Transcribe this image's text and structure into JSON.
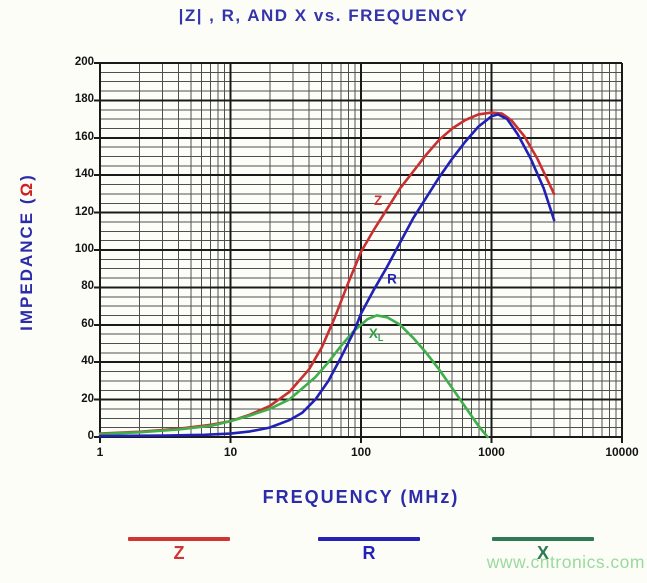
{
  "title": "|Z| , R, AND X vs. FREQUENCY",
  "watermark": "www.cntronics.com",
  "axes": {
    "y_label_prefix": "IMPEDANCE (",
    "y_label_omega": "Ω",
    "y_label_suffix": ")",
    "x_label": "FREQUENCY (MHz)",
    "y_ticks": [
      0,
      20,
      40,
      60,
      80,
      100,
      120,
      140,
      160,
      180,
      200
    ],
    "x_ticks": [
      "1",
      "10",
      "100",
      "1000",
      "10000"
    ]
  },
  "colors": {
    "title_blue": "#3434ab",
    "axis_blue": "#2c2cab",
    "omega_red": "#cf2020",
    "grid_minor": "#4f4f4f",
    "grid_major": "#1a1a1a",
    "tick_text": "#141414",
    "watermark_green": "#9ada9c"
  },
  "chart_data": {
    "type": "line",
    "title": "|Z| , R, AND X vs. FREQUENCY",
    "xlabel": "FREQUENCY (MHz)",
    "ylabel": "IMPEDANCE (Ω)",
    "x_axis": {
      "scale": "log",
      "range_mhz": [
        1,
        10000
      ],
      "minor_marks": "2-9 each decade"
    },
    "y_axis": {
      "range": [
        0,
        200
      ],
      "minor_step": 5,
      "major_step": 20
    },
    "grid": "on",
    "series": [
      {
        "name": "Z",
        "color": "#c93030",
        "points": [
          [
            0,
            1.8
          ],
          [
            0.3,
            2.8
          ],
          [
            0.6,
            4.4
          ],
          [
            0.85,
            6.5
          ],
          [
            1.0,
            8.5
          ],
          [
            1.15,
            12
          ],
          [
            1.3,
            16.5
          ],
          [
            1.45,
            24
          ],
          [
            1.6,
            36
          ],
          [
            1.7,
            48
          ],
          [
            1.8,
            64
          ],
          [
            1.9,
            82
          ],
          [
            2.0,
            99
          ],
          [
            2.1,
            111
          ],
          [
            2.2,
            122
          ],
          [
            2.3,
            133
          ],
          [
            2.4,
            142
          ],
          [
            2.5,
            151
          ],
          [
            2.6,
            159
          ],
          [
            2.7,
            165
          ],
          [
            2.8,
            169.5
          ],
          [
            2.9,
            172.5
          ],
          [
            3.0,
            173.5
          ],
          [
            3.08,
            173
          ],
          [
            3.15,
            169.5
          ],
          [
            3.25,
            161
          ],
          [
            3.35,
            149
          ],
          [
            3.48,
            130
          ]
        ]
      },
      {
        "name": "X",
        "color": "#3fae4b",
        "points": [
          [
            0,
            1.6
          ],
          [
            0.3,
            2.5
          ],
          [
            0.6,
            4.0
          ],
          [
            0.85,
            6.0
          ],
          [
            1.0,
            8.5
          ],
          [
            1.15,
            11.5
          ],
          [
            1.3,
            15
          ],
          [
            1.45,
            20
          ],
          [
            1.55,
            26
          ],
          [
            1.65,
            32
          ],
          [
            1.75,
            40
          ],
          [
            1.85,
            49
          ],
          [
            1.95,
            57
          ],
          [
            2.05,
            63
          ],
          [
            2.12,
            65
          ],
          [
            2.2,
            64
          ],
          [
            2.3,
            60
          ],
          [
            2.4,
            53
          ],
          [
            2.5,
            45
          ],
          [
            2.6,
            36
          ],
          [
            2.7,
            26
          ],
          [
            2.8,
            16
          ],
          [
            2.9,
            6
          ],
          [
            2.97,
            0
          ]
        ]
      },
      {
        "name": "R",
        "color": "#2121b5",
        "points": [
          [
            0,
            0.5
          ],
          [
            0.5,
            0.8
          ],
          [
            0.8,
            1.2
          ],
          [
            1.0,
            1.8
          ],
          [
            1.15,
            3
          ],
          [
            1.3,
            5
          ],
          [
            1.45,
            9
          ],
          [
            1.55,
            13
          ],
          [
            1.65,
            20
          ],
          [
            1.75,
            30
          ],
          [
            1.85,
            43
          ],
          [
            1.95,
            57
          ],
          [
            2.0,
            66
          ],
          [
            2.1,
            79
          ],
          [
            2.2,
            91
          ],
          [
            2.3,
            104
          ],
          [
            2.4,
            117
          ],
          [
            2.5,
            128
          ],
          [
            2.6,
            139
          ],
          [
            2.7,
            149
          ],
          [
            2.8,
            158
          ],
          [
            2.9,
            166
          ],
          [
            3.0,
            171.5
          ],
          [
            3.05,
            172.5
          ],
          [
            3.12,
            170
          ],
          [
            3.2,
            162
          ],
          [
            3.3,
            149
          ],
          [
            3.4,
            133
          ],
          [
            3.48,
            116
          ]
        ]
      }
    ],
    "curve_labels": [
      {
        "text": "Z",
        "sub": "",
        "color": "#cf3333",
        "log10_mhz": 2.1,
        "ohm": 124
      },
      {
        "text": "R",
        "sub": "",
        "color": "#2121b5",
        "log10_mhz": 2.2,
        "ohm": 82
      },
      {
        "text": "X",
        "sub": "L",
        "color": "#2f9e45",
        "log10_mhz": 2.06,
        "ohm": 53
      }
    ],
    "peak_note": "Z and R peak ~173 ohm near 1000 MHz; curves end at 3000 MHz (Z~130, R~116); X peaks ~65 ohm near 110 MHz, reaches 0 near 950 MHz"
  },
  "legend": [
    {
      "label": "Z",
      "color": "#d03434"
    },
    {
      "label": "R",
      "color": "#2222b8"
    },
    {
      "label": "X",
      "color": "#2e7a55"
    }
  ]
}
